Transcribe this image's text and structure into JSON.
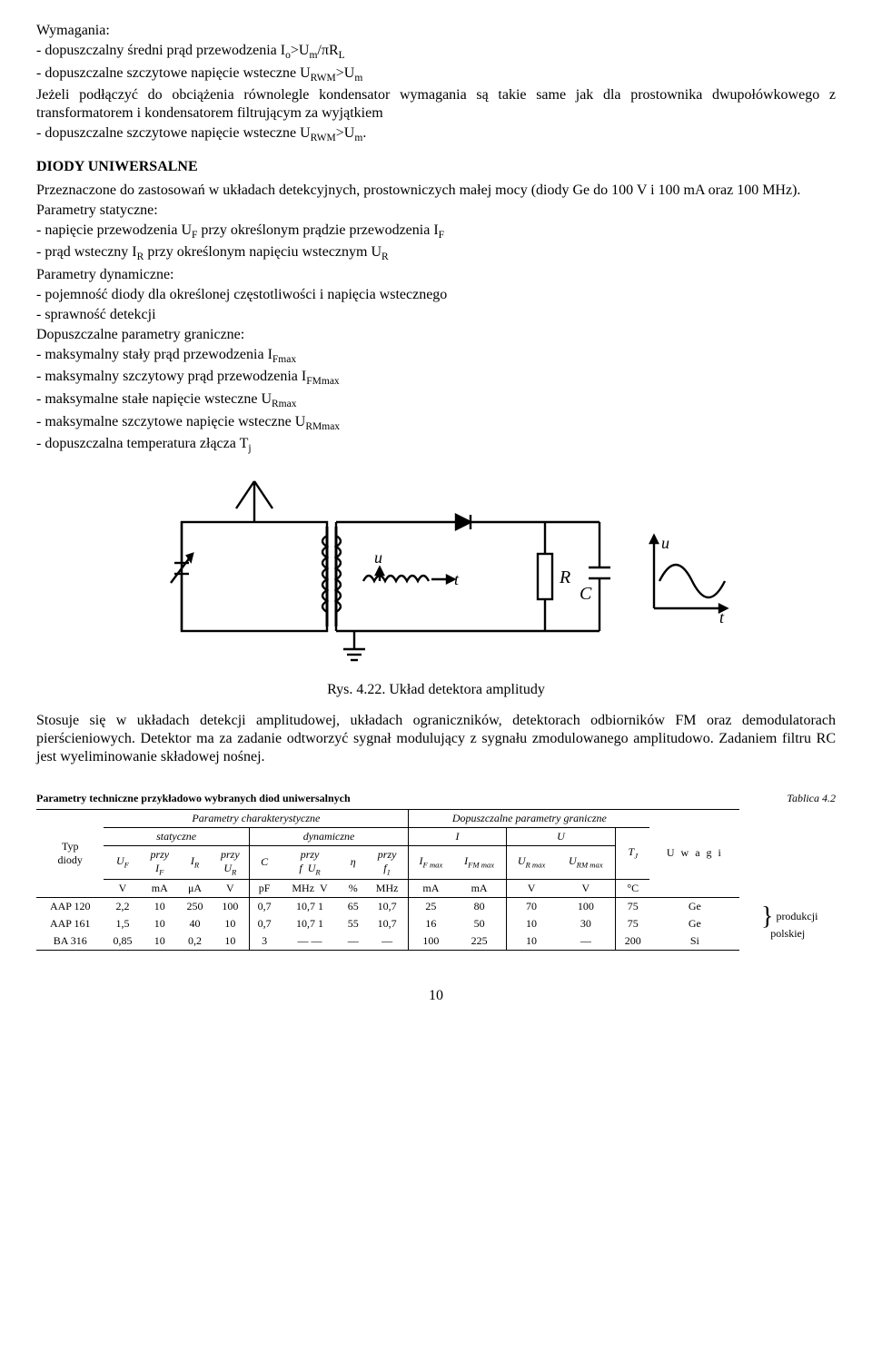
{
  "req": {
    "title": "Wymagania:",
    "line1_a": "- dopuszczalny średni prąd przewodzenia I",
    "line1_sub1": "o",
    "line1_b": ">U",
    "line1_sub2": "m",
    "line1_c": "/πR",
    "line1_sub3": "L",
    "line2_a": "- dopuszczalne szczytowe napięcie wsteczne U",
    "line2_sub1": "RWM",
    "line2_b": ">U",
    "line2_sub2": "m",
    "line3_a": "Jeżeli podłączyć do obciążenia równolegle kondensator wymagania są takie same jak dla prostownika dwupołówkowego z transformatorem i kondensatorem filtrującym za wyjątkiem",
    "line4_a": "- dopuszczalne szczytowe napięcie wsteczne U",
    "line4_sub1": "RWM",
    "line4_b": ">U",
    "line4_sub2": "m",
    "line4_c": "."
  },
  "sec_title": "DIODY UNIWERSALNE",
  "p1": "Przeznaczone do zastosowań w układach detekcyjnych, prostowniczych małej mocy (diody Ge do 100 V i 100 mA  oraz 100 MHz).",
  "ps_title": "Parametry statyczne:",
  "ps1_a": "- napięcie przewodzenia U",
  "ps1_sub1": "F",
  "ps1_b": " przy określonym prądzie przewodzenia I",
  "ps1_sub2": "F",
  "ps2_a": "- prąd wsteczny I",
  "ps2_sub1": "R",
  "ps2_b": " przy określonym napięciu wstecznym U",
  "ps2_sub2": "R",
  "pd_title": "Parametry dynamiczne:",
  "pd1": "- pojemność diody dla określonej częstotliwości i napięcia wstecznego",
  "pd2": "- sprawność detekcji",
  "dp_title": "Dopuszczalne parametry graniczne:",
  "dp1_a": "- maksymalny stały prąd przewodzenia I",
  "dp1_sub": "Fmax",
  "dp2_a": "- maksymalny szczytowy prąd przewodzenia I",
  "dp2_sub": "FMmax",
  "dp3_a": "- maksymalne stałe napięcie wsteczne U",
  "dp3_sub": "Rmax",
  "dp4_a": "- maksymalne szczytowe napięcie wsteczne U",
  "dp4_sub": "RMmax",
  "dp5_a": "- dopuszczalna temperatura złącza T",
  "dp5_sub": "j",
  "fig_caption": "Rys. 4.22. Układ detektora amplitudy",
  "p2": "Stosuje się w układach detekcji amplitudowej, układach ograniczników, detektorach odbiorników FM oraz demodulatorach pierścieniowych. Detektor ma za zadanie odtworzyć sygnał modulujący z sygnału zmodulowanego amplitudowo. Zadaniem filtru RC jest wyeliminowanie składowej nośnej.",
  "tbl": {
    "title": "Parametry techniczne przykładowo wybranych diod uniwersalnych",
    "table_label": "Tablica 4.2",
    "grp_char": "Parametry charakterystyczne",
    "grp_lim": "Dopuszczalne  parametry  graniczne",
    "grp_stat": "statyczne",
    "grp_dyn": "dynamiczne",
    "col_typ": "Typ\ndiody",
    "col_uwagi": "U w a g i",
    "UF": "U",
    "UF_sub": "F",
    "przy": "przy",
    "IF": "I",
    "IF_sub": "F",
    "IR": "I",
    "IR_sub": "R",
    "UR": "U",
    "UR_sub": "R",
    "C": "C",
    "f": "f",
    "eta": "η",
    "f1": "f",
    "f1_sub": "1",
    "I": "I",
    "U": "U",
    "IFmax": "I",
    "IFmax_sub": "F max",
    "IFMmax": "I",
    "IFMmax_sub": "FM max",
    "URmax": "U",
    "URmax_sub": "R max",
    "URMmax": "U",
    "URMmax_sub": "RM max",
    "TJ": "T",
    "TJ_sub": "J",
    "u_V": "V",
    "u_mA": "mA",
    "u_uA": "μA",
    "u_pF": "pF",
    "u_MHz": "MHz",
    "u_pct": "%",
    "u_degC": "°C",
    "rows": [
      {
        "typ": "AAP 120",
        "UF": "2,2",
        "IF": "10",
        "IR": "250",
        "UR": "100",
        "C": "0,7",
        "f": "10,7",
        "UR2": "1",
        "eta": "65",
        "f1": "10,7",
        "IFmax": "25",
        "IFMmax": "80",
        "URmax": "70",
        "URMmax": "100",
        "TJ": "75",
        "mat": "Ge"
      },
      {
        "typ": "AAP 161",
        "UF": "1,5",
        "IF": "10",
        "IR": "40",
        "UR": "10",
        "C": "0,7",
        "f": "10,7",
        "UR2": "1",
        "eta": "55",
        "f1": "10,7",
        "IFmax": "16",
        "IFMmax": "50",
        "URmax": "10",
        "URMmax": "30",
        "TJ": "75",
        "mat": "Ge"
      },
      {
        "typ": "BA 316",
        "UF": "0,85",
        "IF": "10",
        "IR": "0,2",
        "UR": "10",
        "C": "3",
        "f": "—",
        "UR2": "—",
        "eta": "—",
        "f1": "—",
        "IFmax": "100",
        "IFMmax": "225",
        "URmax": "10",
        "URMmax": "—",
        "TJ": "200",
        "mat": "Si"
      }
    ],
    "note": "produkcji\npolskiej"
  },
  "page_num": "10"
}
